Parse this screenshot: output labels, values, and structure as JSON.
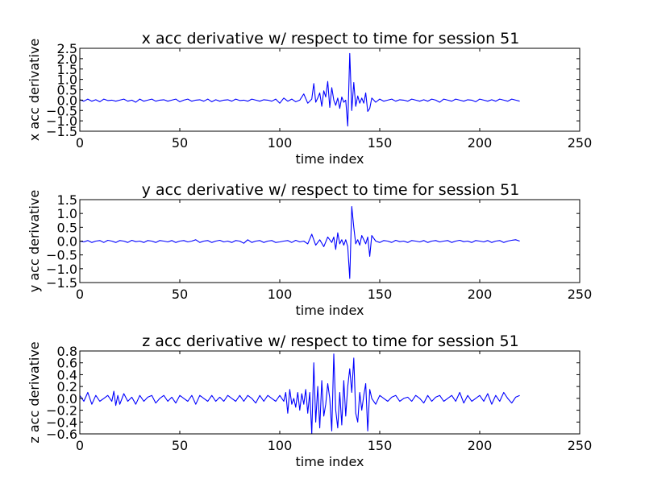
{
  "chart_data": [
    {
      "type": "line",
      "title": "x acc derivative w/ respect to time for session 51",
      "xlabel": "time index",
      "ylabel": "x acc derivative",
      "xlim": [
        0,
        250
      ],
      "ylim": [
        -1.5,
        2.5
      ],
      "xticks": [
        "0",
        "50",
        "100",
        "150",
        "200",
        "250"
      ],
      "yticks": [
        "−1.5",
        "−1.0",
        "−0.5",
        "0.0",
        "0.5",
        "1.0",
        "1.5",
        "2.0",
        "2.5"
      ],
      "line_color": "#0000ff",
      "grid": false,
      "series": [
        {
          "x": [
            0,
            2,
            4,
            6,
            8,
            10,
            12,
            14,
            16,
            18,
            20,
            22,
            24,
            26,
            28,
            30,
            32,
            34,
            36,
            38,
            40,
            42,
            44,
            46,
            48,
            50,
            52,
            54,
            56,
            58,
            60,
            62,
            64,
            66,
            68,
            70,
            72,
            74,
            76,
            78,
            80,
            82,
            84,
            86,
            88,
            90,
            92,
            94,
            96,
            98,
            100,
            102,
            104,
            106,
            108,
            110,
            112,
            114,
            116,
            117,
            118,
            119,
            120,
            121,
            122,
            123,
            124,
            125,
            126,
            127,
            128,
            129,
            130,
            131,
            132,
            133,
            134,
            135,
            136,
            137,
            138,
            139,
            140,
            141,
            142,
            143,
            144,
            145,
            146,
            147,
            148,
            150,
            152,
            154,
            156,
            158,
            160,
            162,
            164,
            166,
            168,
            170,
            172,
            174,
            176,
            178,
            180,
            182,
            184,
            186,
            188,
            190,
            192,
            194,
            196,
            198,
            200,
            202,
            204,
            206,
            208,
            210,
            212,
            214,
            216,
            218,
            220
          ],
          "values": [
            0.02,
            -0.05,
            0.05,
            -0.05,
            0.02,
            -0.08,
            0.05,
            -0.02,
            0.0,
            -0.05,
            0.0,
            0.05,
            -0.05,
            0.0,
            -0.1,
            0.05,
            -0.05,
            0.0,
            0.05,
            -0.05,
            0.0,
            0.02,
            -0.05,
            0.0,
            0.05,
            -0.08,
            0.0,
            0.05,
            -0.05,
            0.0,
            0.02,
            -0.05,
            0.05,
            -0.08,
            0.02,
            -0.05,
            0.0,
            0.02,
            -0.05,
            0.05,
            -0.02,
            0.0,
            -0.05,
            0.05,
            0.0,
            -0.05,
            0.02,
            0.0,
            -0.05,
            0.05,
            -0.15,
            0.1,
            -0.05,
            0.05,
            -0.08,
            0.0,
            0.3,
            -0.15,
            0.05,
            0.8,
            -0.1,
            0.1,
            0.35,
            -0.3,
            0.45,
            0.15,
            0.9,
            -0.35,
            0.6,
            0.0,
            -0.25,
            0.1,
            -0.4,
            0.15,
            -0.1,
            0.0,
            -1.25,
            2.25,
            -0.5,
            0.85,
            -0.3,
            0.2,
            -0.15,
            0.1,
            -0.15,
            0.35,
            -0.55,
            -0.4,
            0.1,
            0.0,
            -0.1,
            0.05,
            -0.05,
            0.0,
            0.05,
            -0.05,
            0.02,
            0.0,
            -0.05,
            0.05,
            0.0,
            -0.05,
            0.02,
            -0.05,
            0.05,
            0.0,
            -0.1,
            0.05,
            0.0,
            -0.05,
            0.05,
            0.0,
            -0.05,
            0.02,
            0.0,
            -0.08,
            0.05,
            0.0,
            -0.05,
            0.02,
            -0.05,
            0.05,
            0.0,
            -0.05,
            0.05,
            0.0,
            -0.05
          ]
        }
      ]
    },
    {
      "type": "line",
      "title": "y acc derivative w/ respect to time for session 51",
      "xlabel": "time index",
      "ylabel": "y acc derivative",
      "xlim": [
        0,
        250
      ],
      "ylim": [
        -1.5,
        1.5
      ],
      "xticks": [
        "0",
        "50",
        "100",
        "150",
        "200",
        "250"
      ],
      "yticks": [
        "−1.5",
        "−1.0",
        "−0.5",
        "0.0",
        "0.5",
        "1.0",
        "1.5"
      ],
      "line_color": "#0000ff",
      "grid": false,
      "series": [
        {
          "x": [
            0,
            2,
            4,
            6,
            8,
            10,
            12,
            14,
            16,
            18,
            20,
            22,
            24,
            26,
            28,
            30,
            32,
            34,
            36,
            38,
            40,
            42,
            44,
            46,
            48,
            50,
            52,
            54,
            56,
            58,
            60,
            62,
            64,
            66,
            68,
            70,
            72,
            74,
            76,
            78,
            80,
            82,
            84,
            86,
            88,
            90,
            92,
            94,
            96,
            98,
            100,
            102,
            104,
            106,
            108,
            110,
            112,
            114,
            116,
            118,
            120,
            122,
            124,
            126,
            127,
            128,
            129,
            130,
            131,
            132,
            133,
            134,
            135,
            136,
            137,
            138,
            139,
            140,
            141,
            142,
            143,
            144,
            145,
            146,
            148,
            150,
            152,
            154,
            156,
            158,
            160,
            162,
            164,
            166,
            168,
            170,
            172,
            174,
            176,
            178,
            180,
            182,
            184,
            186,
            188,
            190,
            192,
            194,
            196,
            198,
            200,
            202,
            204,
            206,
            208,
            210,
            212,
            214,
            216,
            218,
            220
          ],
          "values": [
            0.0,
            -0.03,
            0.02,
            -0.05,
            0.0,
            0.02,
            -0.05,
            0.03,
            0.0,
            -0.05,
            0.02,
            0.0,
            -0.05,
            0.03,
            -0.02,
            0.0,
            -0.05,
            0.02,
            0.0,
            -0.05,
            0.02,
            0.0,
            -0.03,
            0.02,
            -0.05,
            0.0,
            0.02,
            -0.03,
            0.0,
            0.05,
            -0.05,
            0.0,
            0.02,
            -0.05,
            0.0,
            0.03,
            -0.03,
            0.0,
            -0.05,
            0.02,
            0.0,
            -0.08,
            0.05,
            -0.05,
            0.0,
            0.02,
            -0.05,
            0.0,
            0.02,
            -0.05,
            -0.03,
            0.0,
            0.02,
            -0.05,
            0.03,
            -0.03,
            0.0,
            -0.1,
            0.25,
            -0.15,
            0.05,
            -0.2,
            0.15,
            -0.05,
            0.15,
            -0.3,
            0.3,
            -0.1,
            0.05,
            -0.15,
            0.05,
            -0.2,
            -1.35,
            1.25,
            0.5,
            -0.1,
            0.05,
            -0.15,
            0.2,
            0.05,
            -0.1,
            0.15,
            -0.55,
            0.2,
            0.0,
            -0.05,
            0.02,
            0.0,
            -0.05,
            0.03,
            -0.02,
            0.0,
            -0.05,
            0.02,
            0.0,
            -0.03,
            0.02,
            -0.05,
            0.0,
            0.02,
            -0.03,
            0.0,
            0.02,
            -0.05,
            0.0,
            0.03,
            -0.02,
            0.0,
            -0.05,
            0.02,
            0.0,
            -0.03,
            0.02,
            -0.05,
            0.0,
            0.02,
            -0.05,
            0.0,
            0.03,
            0.05,
            0.0
          ]
        }
      ]
    },
    {
      "type": "line",
      "title": "z acc derivative w/ respect to time for session 51",
      "xlabel": "time index",
      "ylabel": "z acc derivative",
      "xlim": [
        0,
        250
      ],
      "ylim": [
        -0.6,
        0.8
      ],
      "xticks": [
        "0",
        "50",
        "100",
        "150",
        "200",
        "250"
      ],
      "yticks": [
        "−0.6",
        "−0.4",
        "−0.2",
        "0.0",
        "0.2",
        "0.4",
        "0.6",
        "0.8"
      ],
      "line_color": "#0000ff",
      "grid": false,
      "series": [
        {
          "x": [
            0,
            2,
            4,
            6,
            8,
            10,
            12,
            14,
            16,
            17,
            18,
            19,
            20,
            22,
            24,
            26,
            28,
            30,
            32,
            34,
            36,
            38,
            40,
            42,
            44,
            46,
            48,
            50,
            52,
            54,
            56,
            58,
            60,
            62,
            64,
            66,
            68,
            70,
            72,
            74,
            76,
            78,
            80,
            82,
            84,
            86,
            88,
            90,
            92,
            94,
            96,
            98,
            100,
            102,
            103,
            104,
            105,
            106,
            107,
            108,
            109,
            110,
            111,
            112,
            113,
            114,
            115,
            116,
            117,
            118,
            119,
            120,
            121,
            122,
            123,
            124,
            125,
            126,
            127,
            128,
            129,
            130,
            131,
            132,
            133,
            134,
            135,
            136,
            137,
            138,
            139,
            140,
            141,
            142,
            143,
            144,
            145,
            146,
            148,
            150,
            152,
            154,
            156,
            158,
            160,
            162,
            164,
            166,
            168,
            170,
            172,
            174,
            176,
            178,
            180,
            182,
            184,
            186,
            188,
            190,
            192,
            194,
            196,
            198,
            200,
            202,
            204,
            206,
            208,
            210,
            212,
            214,
            216,
            218,
            220
          ],
          "values": [
            0.05,
            -0.05,
            0.1,
            -0.1,
            0.05,
            -0.05,
            0.0,
            0.05,
            -0.05,
            0.12,
            -0.12,
            0.05,
            -0.1,
            0.08,
            -0.05,
            0.02,
            -0.1,
            0.05,
            -0.05,
            0.02,
            0.05,
            -0.08,
            0.0,
            0.05,
            -0.05,
            0.02,
            -0.08,
            0.05,
            0.0,
            -0.05,
            0.05,
            -0.1,
            0.05,
            0.0,
            -0.05,
            0.05,
            -0.05,
            0.02,
            -0.05,
            0.05,
            0.0,
            -0.05,
            0.05,
            -0.05,
            0.05,
            0.0,
            -0.08,
            0.05,
            -0.05,
            0.05,
            0.0,
            -0.05,
            0.05,
            -0.05,
            0.1,
            -0.25,
            0.15,
            -0.1,
            0.0,
            -0.15,
            0.1,
            -0.2,
            0.08,
            -0.1,
            0.15,
            -0.25,
            0.1,
            -0.6,
            0.6,
            -0.4,
            0.2,
            -0.5,
            0.3,
            -0.3,
            -0.1,
            0.25,
            0.0,
            -0.55,
            0.75,
            -0.2,
            -0.5,
            0.1,
            -0.45,
            0.3,
            -0.3,
            0.2,
            0.5,
            0.1,
            0.68,
            -0.25,
            -0.4,
            0.1,
            -0.2,
            0.05,
            0.25,
            -0.55,
            0.15,
            0.0,
            -0.1,
            0.05,
            0.0,
            -0.05,
            0.02,
            0.05,
            -0.05,
            0.0,
            0.02,
            -0.05,
            0.05,
            0.0,
            -0.08,
            0.05,
            -0.05,
            0.02,
            0.05,
            -0.05,
            0.0,
            0.05,
            -0.05,
            0.1,
            -0.08,
            0.05,
            -0.05,
            0.0,
            0.05,
            -0.05,
            0.08,
            -0.1,
            0.05,
            -0.05,
            0.1,
            0.0,
            -0.08,
            0.02,
            0.05
          ]
        }
      ]
    }
  ]
}
